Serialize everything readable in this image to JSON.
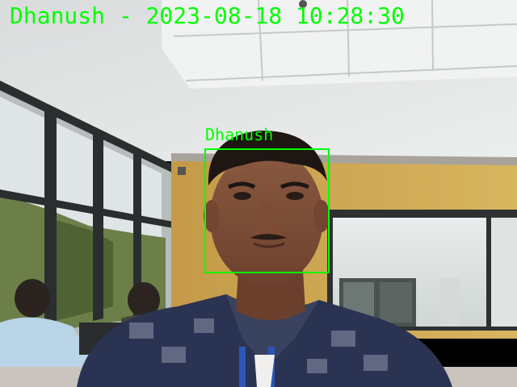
{
  "overlay": {
    "header_text": "Dhanush - 2023-08-18 10:28:30",
    "face_label": "Dhanush",
    "accent_color": "#00ff00"
  }
}
